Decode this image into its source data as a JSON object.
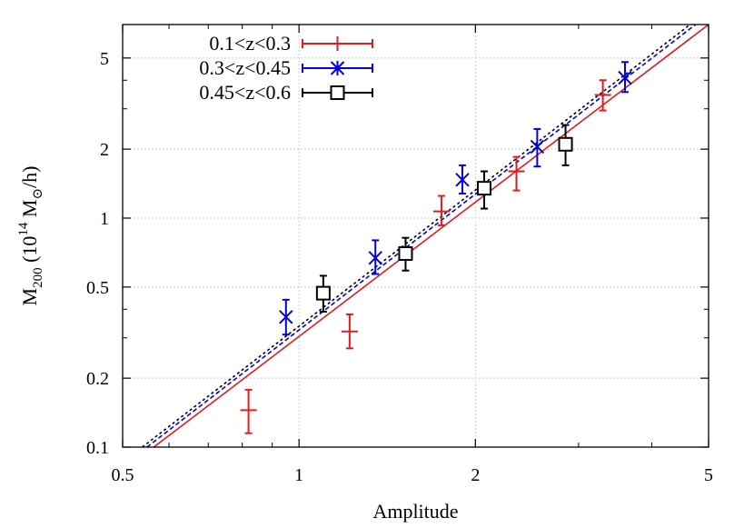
{
  "chart_data": {
    "type": "scatter",
    "xlabel": "Amplitude",
    "ylabel": {
      "base": "M",
      "sub": "200",
      "rest1": " (10",
      "sup": "14",
      "rest2": " M",
      "sun": "⊙",
      "rest3": "/h)"
    },
    "xscale": "log",
    "yscale": "log",
    "xlim": [
      0.5,
      5
    ],
    "ylim": [
      0.1,
      7
    ],
    "grid": true,
    "legend_position": "top-left",
    "x_ticks": [
      {
        "value": 0.5,
        "label": "0.5"
      },
      {
        "value": 1,
        "label": "1"
      },
      {
        "value": 2,
        "label": "2"
      },
      {
        "value": 5,
        "label": "5"
      }
    ],
    "y_ticks": [
      {
        "value": 0.1,
        "label": "0.1"
      },
      {
        "value": 0.2,
        "label": "0.2"
      },
      {
        "value": 0.5,
        "label": "0.5"
      },
      {
        "value": 1,
        "label": "1"
      },
      {
        "value": 2,
        "label": "2"
      },
      {
        "value": 5,
        "label": "5"
      }
    ],
    "series": [
      {
        "name": "0.1<z<0.3",
        "color": "#e41a1c",
        "marker": "plus",
        "points": [
          {
            "x": 0.82,
            "y": 0.145,
            "ylo": 0.115,
            "yhi": 0.178
          },
          {
            "x": 1.22,
            "y": 0.32,
            "ylo": 0.27,
            "yhi": 0.38
          },
          {
            "x": 1.75,
            "y": 1.07,
            "ylo": 0.93,
            "yhi": 1.25
          },
          {
            "x": 2.35,
            "y": 1.6,
            "ylo": 1.32,
            "yhi": 1.85
          },
          {
            "x": 3.3,
            "y": 3.45,
            "ylo": 2.95,
            "yhi": 4.0
          }
        ],
        "fit": {
          "x": [
            0.565,
            5
          ],
          "y": [
            0.1,
            7
          ]
        }
      },
      {
        "name": "0.3<z<0.45",
        "color": "#0000e0",
        "marker": "cross",
        "points": [
          {
            "x": 0.95,
            "y": 0.37,
            "ylo": 0.31,
            "yhi": 0.44
          },
          {
            "x": 1.35,
            "y": 0.67,
            "ylo": 0.57,
            "yhi": 0.8
          },
          {
            "x": 1.9,
            "y": 1.47,
            "ylo": 1.28,
            "yhi": 1.7
          },
          {
            "x": 2.55,
            "y": 2.05,
            "ylo": 1.68,
            "yhi": 2.45
          },
          {
            "x": 3.6,
            "y": 4.1,
            "ylo": 3.55,
            "yhi": 4.8
          }
        ],
        "fit": {
          "x": [
            0.55,
            4.75
          ],
          "y": [
            0.1,
            7
          ]
        }
      },
      {
        "name": "0.45<z<0.6",
        "color": "#000000",
        "marker": "square",
        "points": [
          {
            "x": 1.1,
            "y": 0.47,
            "ylo": 0.39,
            "yhi": 0.56
          },
          {
            "x": 1.52,
            "y": 0.7,
            "ylo": 0.59,
            "yhi": 0.82
          },
          {
            "x": 2.07,
            "y": 1.35,
            "ylo": 1.1,
            "yhi": 1.6
          },
          {
            "x": 2.85,
            "y": 2.1,
            "ylo": 1.7,
            "yhi": 2.55
          }
        ],
        "fit": {
          "x": [
            0.54,
            4.65
          ],
          "y": [
            0.1,
            7
          ]
        }
      }
    ]
  }
}
